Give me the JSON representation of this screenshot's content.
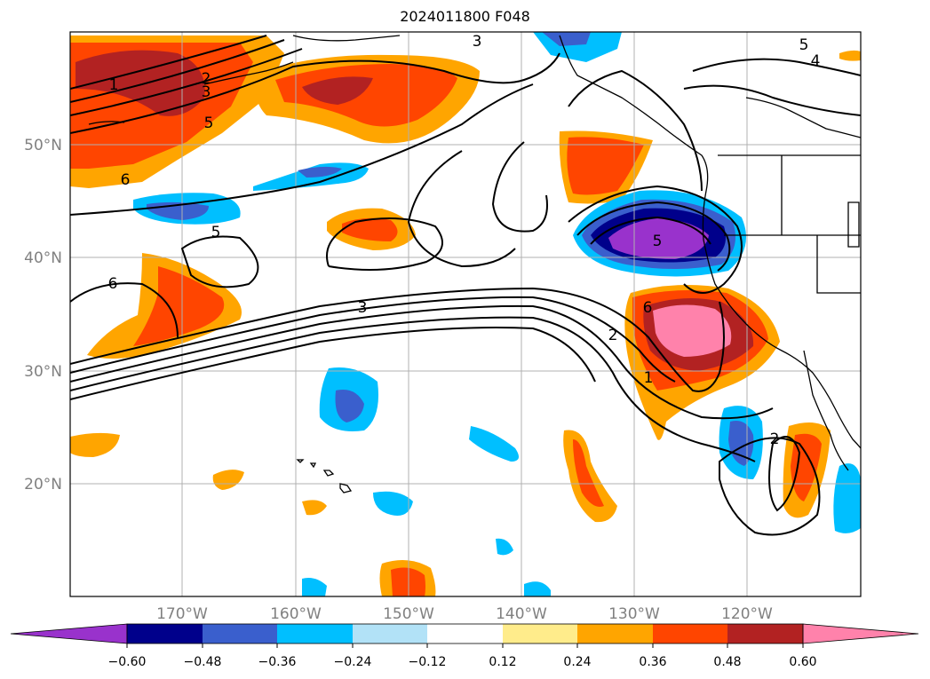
{
  "title": "2024011800 F048",
  "map": {
    "lat_labels": [
      "50°N",
      "40°N",
      "30°N",
      "20°N"
    ],
    "lon_labels": [
      "170°W",
      "160°W",
      "150°W",
      "140°W",
      "130°W",
      "120°W"
    ],
    "contour_labels": [
      "3",
      "5",
      "4",
      "1",
      "2",
      "3",
      "5",
      "6",
      "5",
      "6",
      "5",
      "6",
      "3",
      "2",
      "1",
      "2"
    ]
  },
  "colorbar": {
    "colors": [
      "#9932cc",
      "#00008b",
      "#3a5fcd",
      "#00bfff",
      "#b2e2f7",
      "#ffffff",
      "#ffec8b",
      "#ffa500",
      "#ff4500",
      "#b22222",
      "#ff82ab"
    ],
    "tick_labels": [
      "−0.60",
      "−0.48",
      "−0.36",
      "−0.24",
      "−0.12",
      "0.12",
      "0.24",
      "0.36",
      "0.48",
      "0.60"
    ]
  }
}
